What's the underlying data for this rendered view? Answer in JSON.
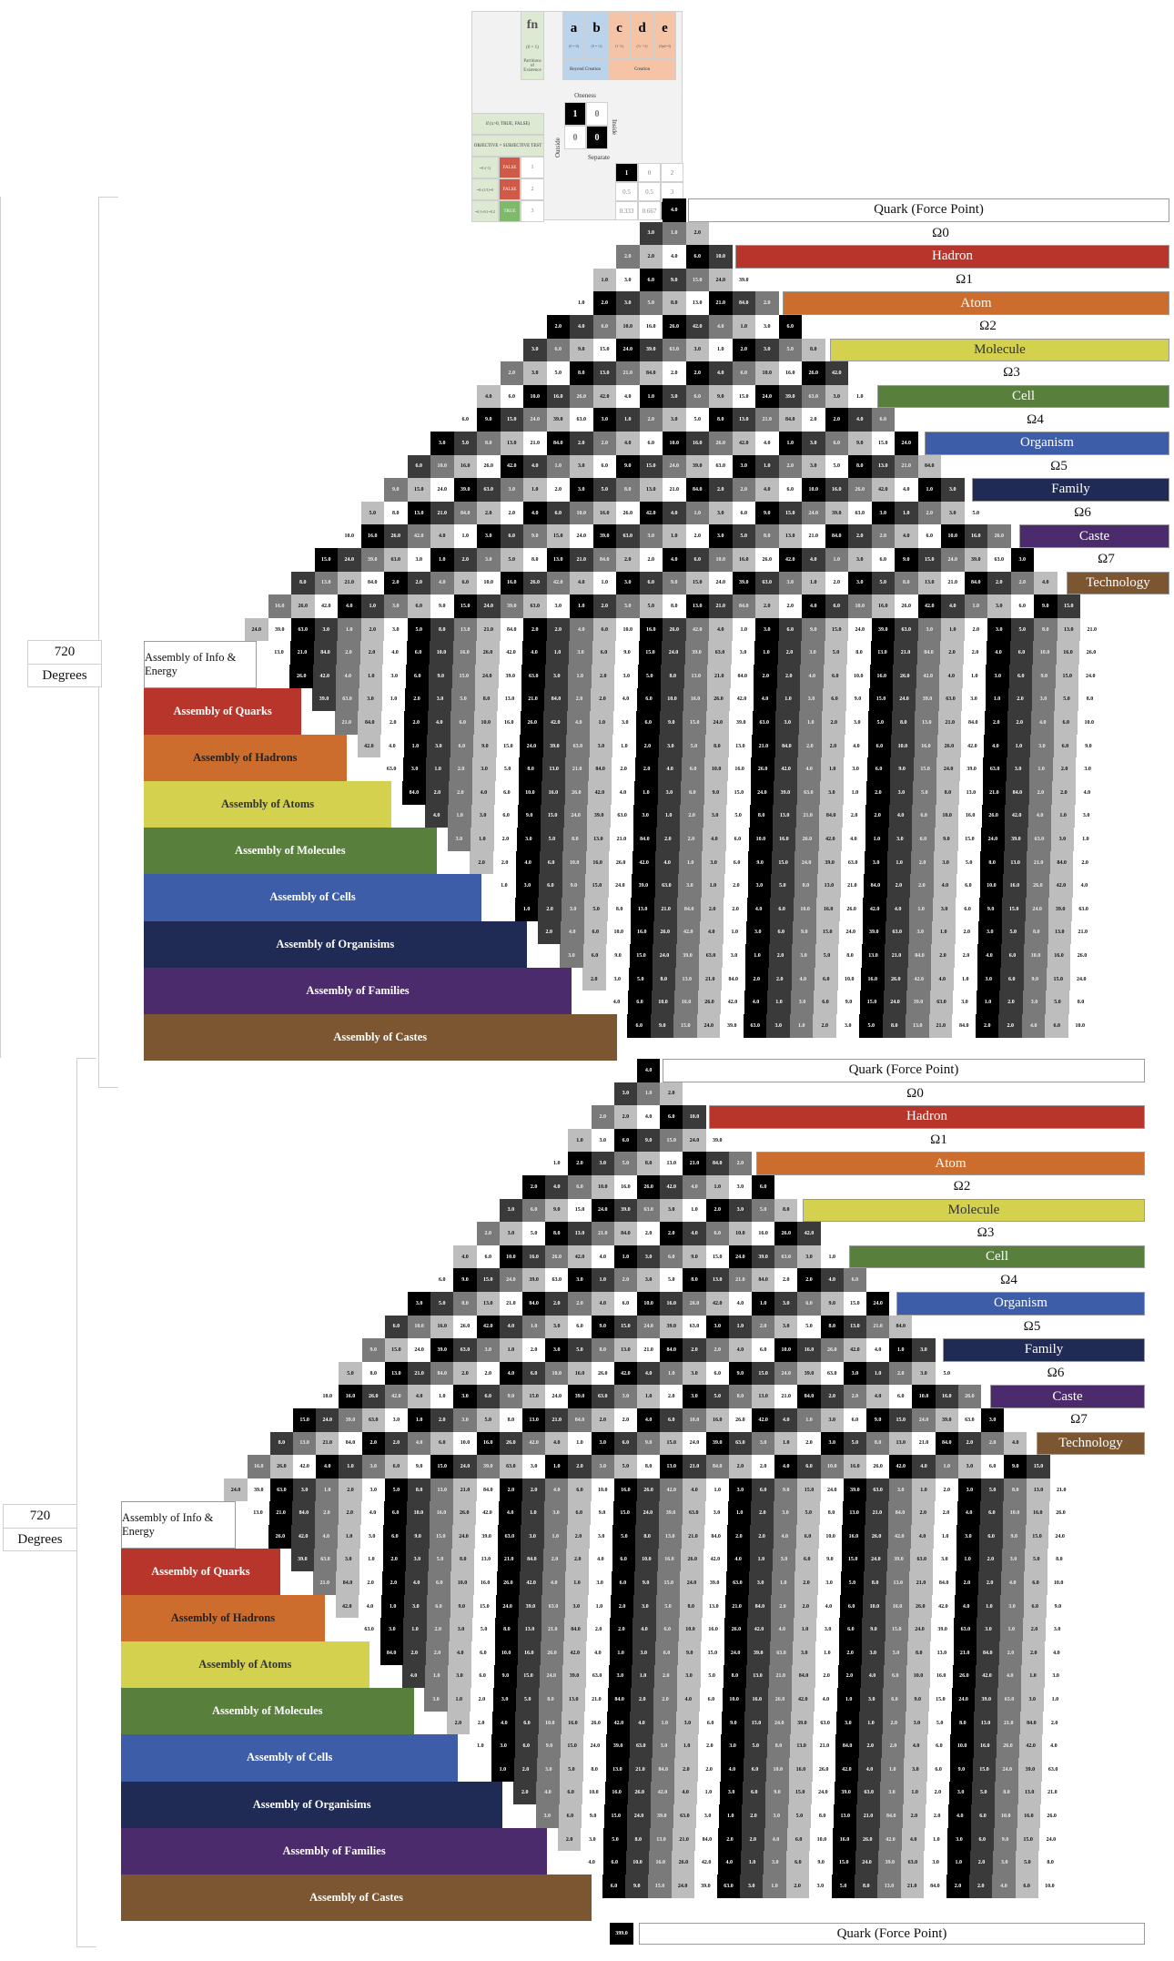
{
  "legend": {
    "fn": {
      "label": "fn",
      "sub": "(0 = 1)",
      "desc": "Partitions of Existence"
    },
    "cols": [
      {
        "key": "a",
        "sub": "(0 = 0)"
      },
      {
        "key": "b",
        "sub": "(0 = ½)"
      },
      {
        "key": "c",
        "sub": "(1 ⅓)"
      },
      {
        "key": "d",
        "sub": "(½ - ⅓)"
      },
      {
        "key": "e",
        "sub": "(f(n)=3)"
      }
    ],
    "group_beyond": "Beyond Creation",
    "group_creation": "Creation",
    "rule_if": "if (x>0, TRUE, FALSE)",
    "rule_obj": "OBJECTIVE = SUBJECTIVE TEST",
    "rows": [
      {
        "expr": "=0>(-1)",
        "state": "FALSE",
        "val": "1"
      },
      {
        "expr": "=0<(1/1)=0",
        "state": "FALSE",
        "val": "2"
      },
      {
        "expr": "=0.1+0.1=0.2",
        "state": "TRUE",
        "val": "3"
      }
    ],
    "oneness": "Oneness",
    "inside": "Inside",
    "outside": "Outside",
    "separate": "Separate",
    "grid_vals": [
      "1",
      "0",
      "0",
      "0"
    ],
    "sep_row1": [
      "1",
      "0",
      "2"
    ],
    "sep_row2": [
      "0.5",
      "0.5",
      "3"
    ],
    "sep_row3": [
      "0.333",
      "0.667",
      "4.0"
    ]
  },
  "degrees": {
    "value": "720",
    "label": "Degrees"
  },
  "levels": [
    {
      "label": "Quark (Force Point)",
      "kind": "plain"
    },
    {
      "label": "Ω0",
      "kind": "omega"
    },
    {
      "label": "Hadron",
      "kind": "band",
      "color": "#b7352b"
    },
    {
      "label": "Ω1",
      "kind": "omega"
    },
    {
      "label": "Atom",
      "kind": "band",
      "color": "#cc6d2e"
    },
    {
      "label": "Ω2",
      "kind": "omega"
    },
    {
      "label": "Molecule",
      "kind": "band",
      "color": "#d3d14e"
    },
    {
      "label": "Ω3",
      "kind": "omega"
    },
    {
      "label": "Cell",
      "kind": "band",
      "color": "#587f3c"
    },
    {
      "label": "Ω4",
      "kind": "omega"
    },
    {
      "label": "Organism",
      "kind": "band",
      "color": "#3d5da9"
    },
    {
      "label": "Ω5",
      "kind": "omega"
    },
    {
      "label": "Family",
      "kind": "band",
      "color": "#1f2a55"
    },
    {
      "label": "Ω6",
      "kind": "omega"
    },
    {
      "label": "Caste",
      "kind": "band",
      "color": "#4c2b6c"
    },
    {
      "label": "Ω7",
      "kind": "omega"
    },
    {
      "label": "Technology",
      "kind": "band",
      "color": "#7b5631"
    }
  ],
  "assemblies": [
    {
      "label": "Assembly of Info & Energy",
      "color": "#ffffff",
      "text": "#111111"
    },
    {
      "label": "Assembly of Quarks",
      "color": "#b7352b",
      "text": "#ffffff"
    },
    {
      "label": "Assembly of Hadrons",
      "color": "#cc6d2e",
      "text": "#222222"
    },
    {
      "label": "Assembly of Atoms",
      "color": "#d3d14e",
      "text": "#333333"
    },
    {
      "label": "Assembly of Molecules",
      "color": "#587f3c",
      "text": "#ffffff"
    },
    {
      "label": "Assembly of Cells",
      "color": "#3d5da9",
      "text": "#ffffff"
    },
    {
      "label": "Assembly of Organisims",
      "color": "#1f2a55",
      "text": "#ffffff"
    },
    {
      "label": "Assembly of Families",
      "color": "#4c2b6c",
      "text": "#ffffff"
    },
    {
      "label": "Assembly of Castes",
      "color": "#7b5631",
      "text": "#ffffff"
    }
  ],
  "bottom_point": {
    "label": "399.0"
  },
  "bottom_label": "Quark (Force Point)",
  "cell_values": [
    "4.0",
    "3.0",
    "2.0",
    "1.0",
    "1.0",
    "2.0",
    "3.0",
    "2.0",
    "4.0",
    "6.0",
    "3.0",
    "6.0",
    "9.0",
    "5.0",
    "10.0",
    "15.0",
    "8.0",
    "16.0",
    "24.0",
    "13.0",
    "26.0",
    "39.0",
    "21.0",
    "42.0",
    "63.0",
    "84.0"
  ],
  "colors": {
    "black": "#000000",
    "dark": "#3a3a3a",
    "mid": "#7a7a7a",
    "light": "#bdbdbd",
    "white": "#ffffff"
  }
}
